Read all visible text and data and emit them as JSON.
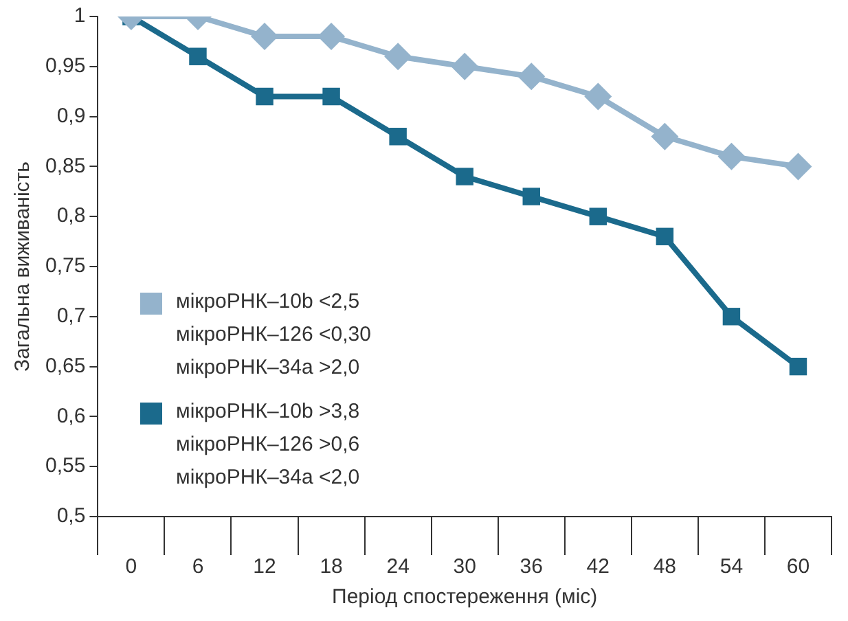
{
  "chart_data": {
    "type": "line",
    "xlabel": "Період спостереження (міс)",
    "ylabel": "Загальна виживаність",
    "categories": [
      "0",
      "6",
      "12",
      "18",
      "24",
      "30",
      "36",
      "42",
      "48",
      "54",
      "60"
    ],
    "series": [
      {
        "name": "мікроРНК–10b <2,5\nмікроРНК–126 <0,30\nмікроРНК–34a >2,0",
        "color": "#94b3cc",
        "marker": "diamond",
        "values": [
          1,
          1,
          0.98,
          0.98,
          0.96,
          0.95,
          0.94,
          0.92,
          0.88,
          0.86,
          0.85
        ]
      },
      {
        "name": "мікроРНК–10b >3,8\nмікроРНК–126 >0,6\nмікроРНК–34a <2,0",
        "color": "#1b6a8c",
        "marker": "square",
        "values": [
          1,
          0.96,
          0.92,
          0.92,
          0.88,
          0.84,
          0.82,
          0.8,
          0.78,
          0.7,
          0.65
        ]
      }
    ],
    "ylim": [
      0.5,
      1
    ],
    "yticks": [
      {
        "value": 0.5,
        "label": "0,5"
      },
      {
        "value": 0.55,
        "label": "0,55"
      },
      {
        "value": 0.6,
        "label": "0,6"
      },
      {
        "value": 0.65,
        "label": "0,65"
      },
      {
        "value": 0.7,
        "label": "0,7"
      },
      {
        "value": 0.75,
        "label": "0,75"
      },
      {
        "value": 0.8,
        "label": "0,8"
      },
      {
        "value": 0.85,
        "label": "0,85"
      },
      {
        "value": 0.9,
        "label": "0,9"
      },
      {
        "value": 0.95,
        "label": "0,95"
      },
      1
    ],
    "grid": false,
    "legend": "left",
    "line_style": "solid"
  }
}
